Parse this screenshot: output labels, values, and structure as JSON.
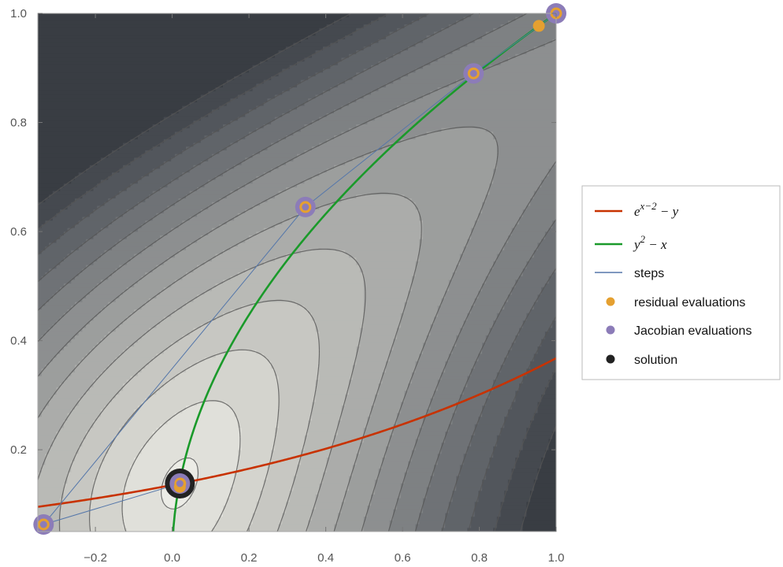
{
  "chart_data": {
    "type": "contour",
    "xlim": [
      -0.35,
      1.0
    ],
    "ylim": [
      0.05,
      1.0
    ],
    "xticks": [
      -0.2,
      0.0,
      0.2,
      0.4,
      0.6,
      0.8,
      1.0
    ],
    "xtick_labels": [
      "−0.2",
      "0.0",
      "0.2",
      "0.4",
      "0.6",
      "0.8",
      "1.0"
    ],
    "yticks": [
      0.2,
      0.4,
      0.6,
      0.8,
      1.0
    ],
    "ytick_labels": [
      "0.2",
      "0.4",
      "0.6",
      "0.8",
      "1.0"
    ],
    "grid": false,
    "legend_position": "right",
    "contour_levels": [
      0.002,
      0.02,
      0.05,
      0.09,
      0.14,
      0.2,
      0.27,
      0.35,
      0.44,
      0.54,
      0.65,
      0.77,
      0.9
    ],
    "contour_colors": [
      "#ecece6",
      "#e0e0da",
      "#d4d4ce",
      "#c7c7c2",
      "#b9bab6",
      "#abacaa",
      "#9c9e9d",
      "#8d8f90",
      "#7e8183",
      "#6f7276",
      "#606469",
      "#52565c",
      "#45494f",
      "#393d43"
    ],
    "series": [
      {
        "name_parts": {
          "base": "e",
          "sup": "x−2",
          "tail": " − y"
        },
        "type": "line",
        "color": "#c83200",
        "function": "exp(x-2)",
        "x_range": [
          -0.35,
          1.0
        ]
      },
      {
        "name_parts": {
          "base": "y",
          "sup": "2",
          "tail": " − x"
        },
        "type": "line",
        "color": "#1a9a2a",
        "function": "sqrt(x)",
        "x_range": [
          0.0,
          1.0
        ]
      },
      {
        "name": "steps",
        "type": "line",
        "color": "#5577aa",
        "points": [
          [
            1.0,
            1.0
          ],
          [
            0.785,
            0.89
          ],
          [
            0.347,
            0.645
          ],
          [
            -0.335,
            0.063
          ],
          [
            0.02,
            0.138
          ]
        ]
      },
      {
        "name": "residual evaluations",
        "type": "scatter",
        "color": "#e5a030",
        "points": [
          [
            1.0,
            1.0
          ],
          [
            0.955,
            0.977
          ],
          [
            0.785,
            0.89
          ],
          [
            0.347,
            0.645
          ],
          [
            -0.335,
            0.063
          ],
          [
            0.02,
            0.132
          ],
          [
            0.021,
            0.138
          ]
        ]
      },
      {
        "name": "Jacobian evaluations",
        "type": "scatter",
        "color": "#8c7cb8",
        "points": [
          [
            1.0,
            1.0
          ],
          [
            0.785,
            0.89
          ],
          [
            0.347,
            0.645
          ],
          [
            -0.335,
            0.063
          ],
          [
            0.02,
            0.138
          ]
        ]
      },
      {
        "name": "solution",
        "type": "scatter",
        "color": "#222222",
        "points": [
          [
            0.02,
            0.138
          ]
        ]
      }
    ]
  }
}
